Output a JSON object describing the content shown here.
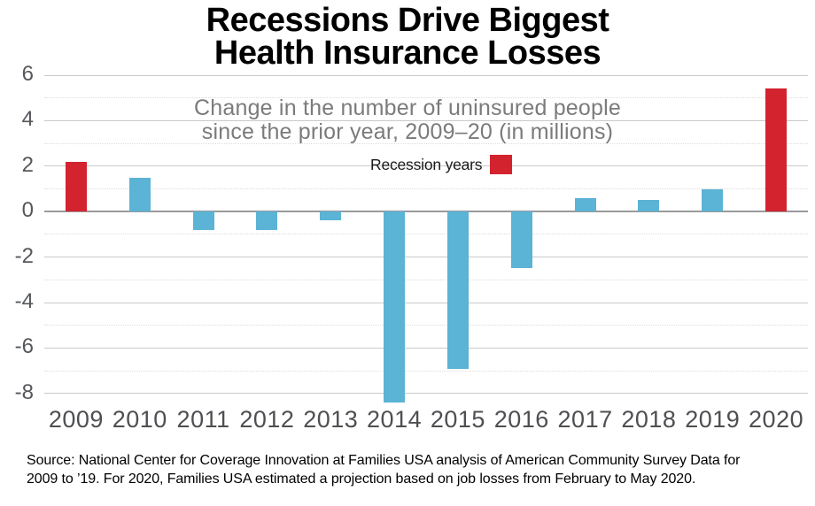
{
  "title": {
    "line1": "Recessions Drive Biggest",
    "line2": "Health Insurance Losses"
  },
  "subtitle": {
    "line1": "Change in the number of uninsured people",
    "line2": "since the prior year, 2009–20 (in millions)"
  },
  "legend": {
    "label": "Recession years"
  },
  "source": {
    "line1": "Source: National Center for Coverage Innovation at Families USA analysis of American Community Survey Data for",
    "line2": "2009 to ’19. For 2020, Families USA estimated a projection based on job losses from February to May 2020."
  },
  "colors": {
    "recession_red": "#d2232e",
    "bar_blue": "#5bb3d5",
    "grid_solid": "#c9c9c9",
    "grid_dotted": "#dcdcdc",
    "zero_line": "#9a9a9c",
    "axis_text": "#55575a",
    "subtitle_text": "#7b7b7b"
  },
  "chart_data": {
    "type": "bar",
    "title": "Recessions Drive Biggest Health Insurance Losses",
    "subtitle": "Change in the number of uninsured people since the prior year, 2009–20 (in millions)",
    "categories": [
      "2009",
      "2010",
      "2011",
      "2012",
      "2013",
      "2014",
      "2015",
      "2016",
      "2017",
      "2018",
      "2019",
      "2020"
    ],
    "values": [
      2.2,
      1.5,
      -0.8,
      -0.8,
      -0.4,
      -8.4,
      -6.9,
      -2.5,
      0.6,
      0.5,
      1.0,
      5.4
    ],
    "recession_years": [
      "2009",
      "2020"
    ],
    "yticks": [
      6,
      4,
      2,
      0,
      -2,
      -4,
      -6,
      -8
    ],
    "minor_gridlines": [
      5,
      3,
      1,
      -1,
      -3,
      -5,
      -7
    ],
    "ylim": [
      -8.6,
      6.2
    ],
    "xlabel": "",
    "ylabel": "",
    "grid": "horizontal",
    "legend_entries": [
      {
        "label": "Recession years",
        "color": "#d2232e"
      }
    ],
    "legend_position": "top-center"
  }
}
